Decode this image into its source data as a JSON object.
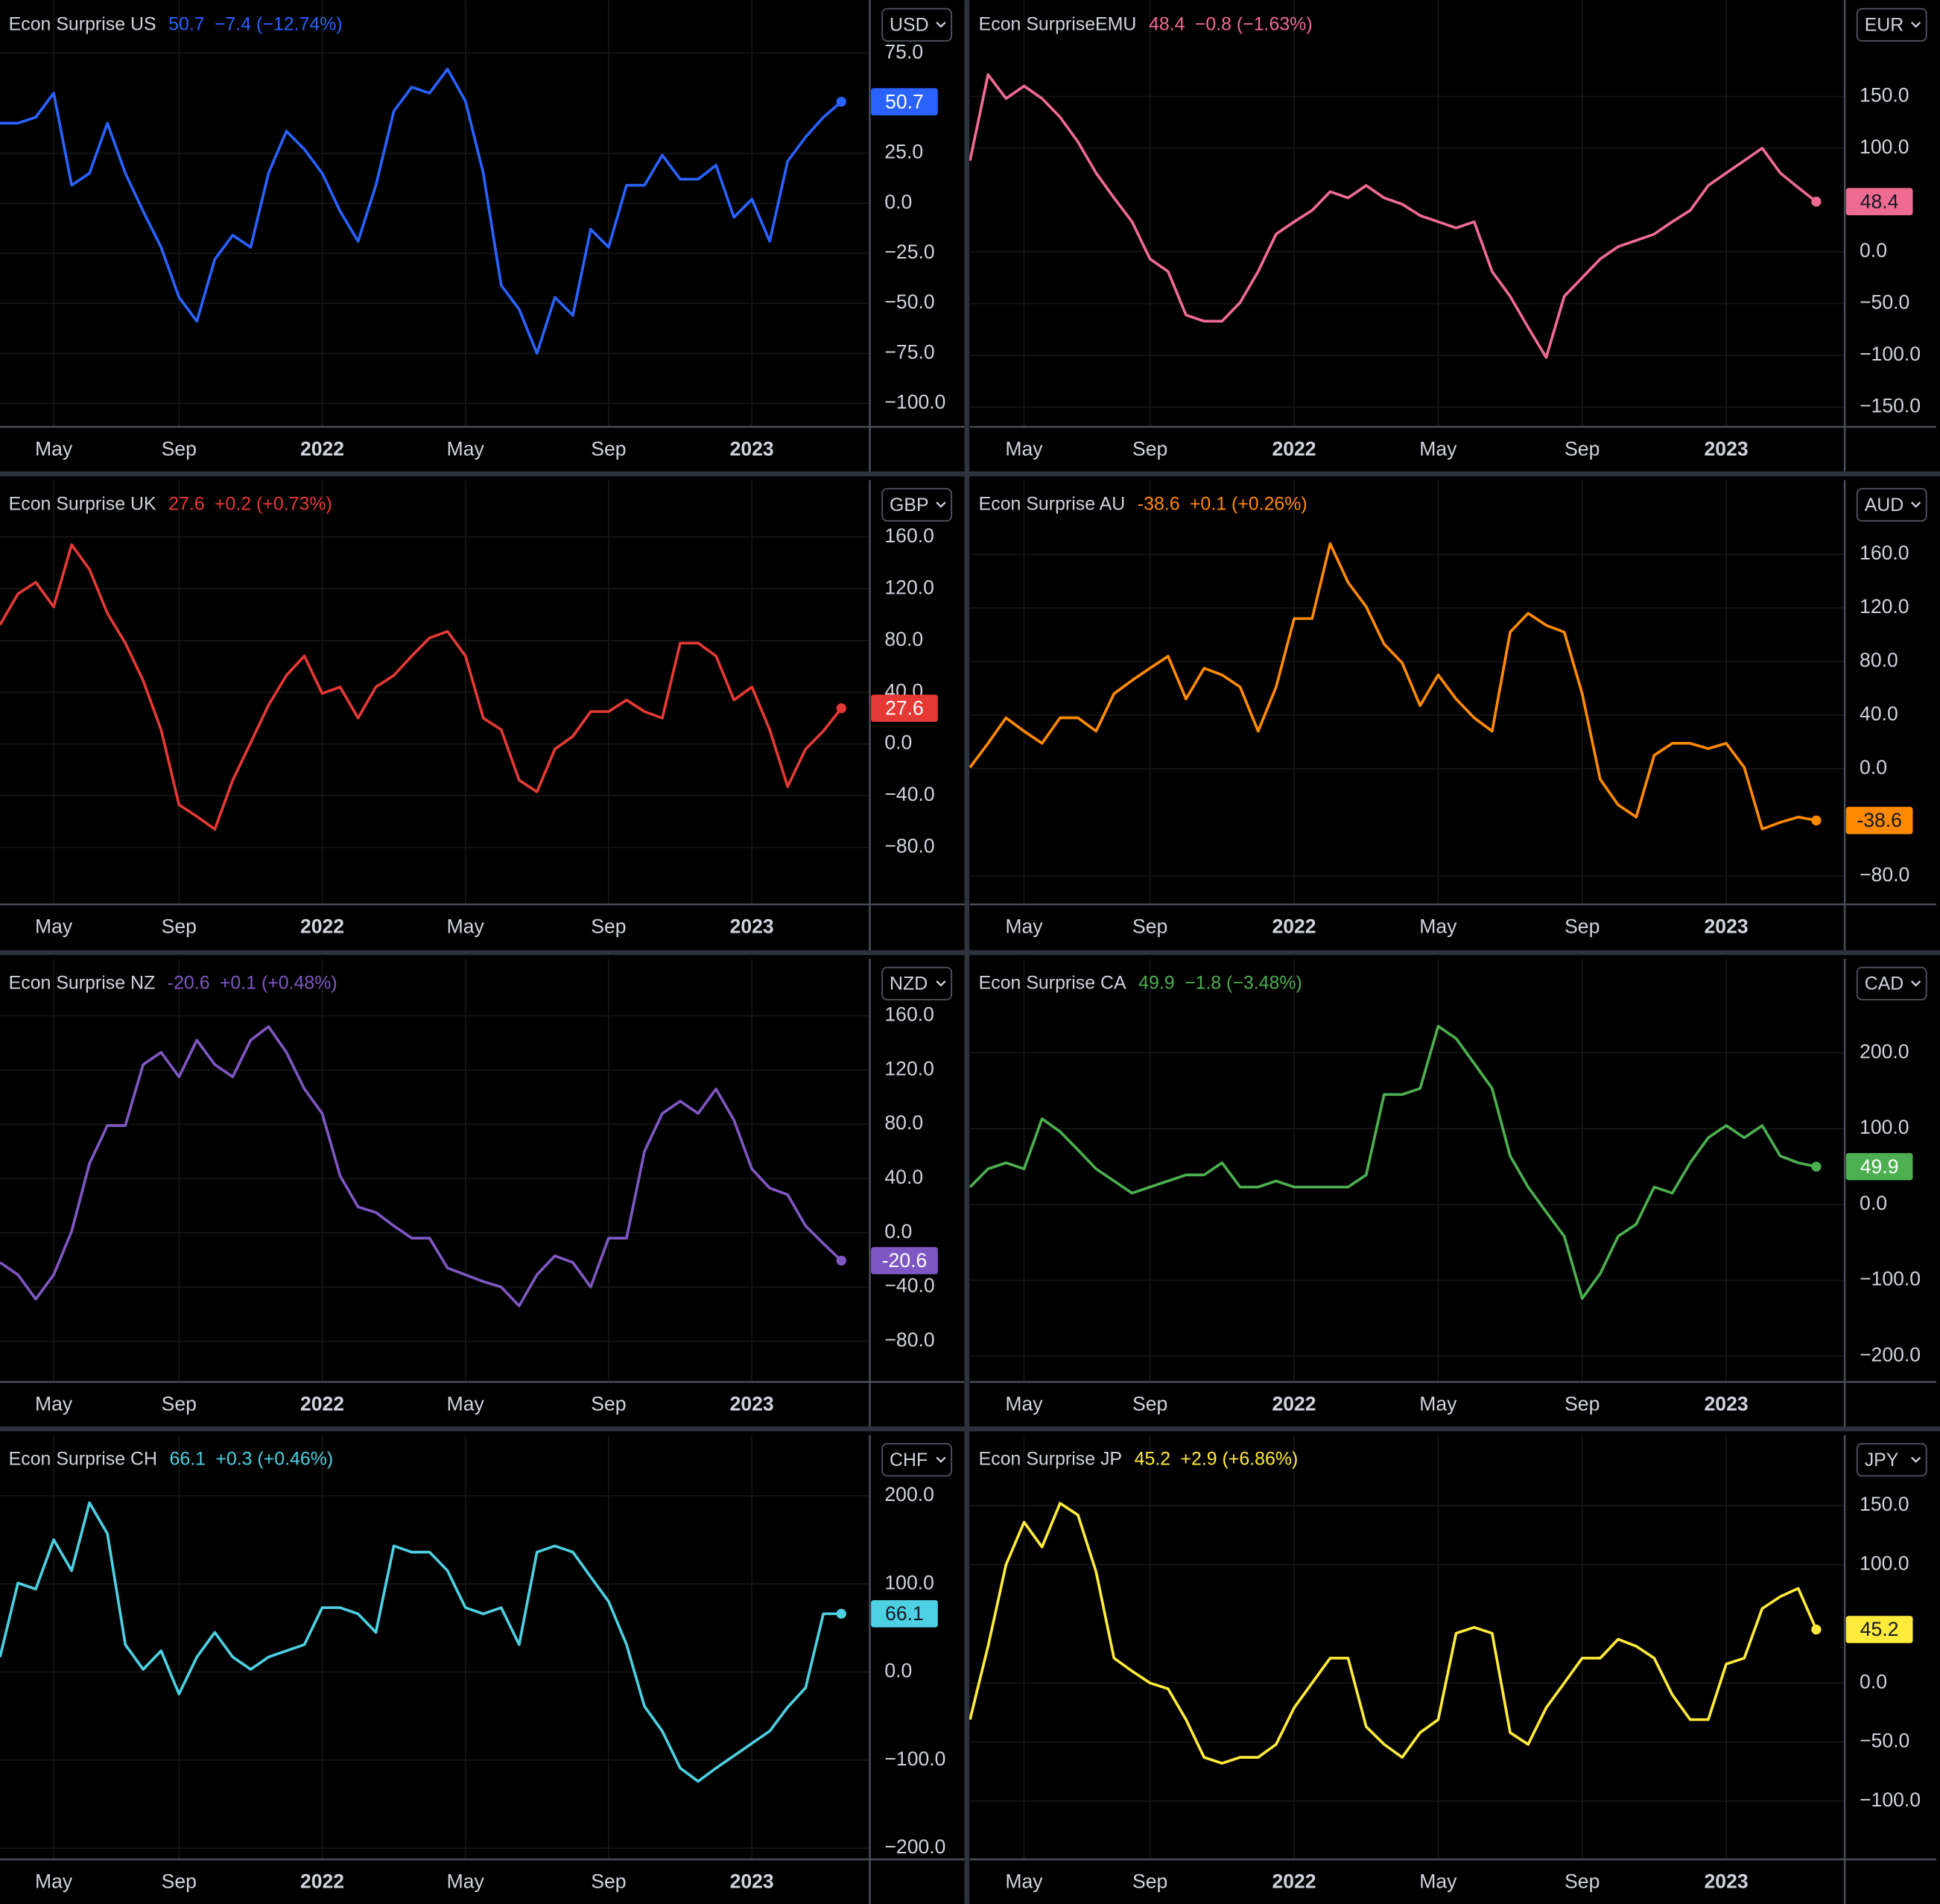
{
  "chart_data": [
    {
      "type": "line",
      "title": "Econ Surprise US",
      "change": "−7.4 (−12.74%)",
      "currency": "USD",
      "color": "#2962ff",
      "categories": [
        null,
        null,
        null,
        "May",
        null,
        null,
        null,
        null,
        null,
        null,
        "Sep",
        null,
        null,
        null,
        null,
        null,
        null,
        null,
        "2022",
        null,
        null,
        null,
        null,
        null,
        null,
        null,
        "May",
        null,
        null,
        null,
        null,
        null,
        null,
        null,
        "Sep",
        null,
        null,
        null,
        null,
        null,
        null,
        null,
        "2023",
        null,
        null,
        null,
        null,
        null
      ],
      "values": [
        40,
        40,
        43,
        55,
        9,
        15,
        40,
        15,
        -4,
        -22,
        -47,
        -59,
        -28,
        -16,
        -22,
        15,
        36,
        27,
        15,
        -4,
        -19,
        9,
        46,
        58,
        55,
        67,
        51,
        15,
        -41,
        -53,
        -75,
        -47,
        -56,
        -13,
        -22,
        9,
        9,
        24,
        12,
        12,
        19,
        -7,
        2,
        -19,
        21,
        33,
        43,
        50.7
      ],
      "ylim": [
        -111.7,
        101.5
      ],
      "yticks": [
        {
          "value": 75,
          "label": "75.0"
        },
        {
          "value": 25,
          "label": "25.0"
        },
        {
          "value": 0,
          "label": "0.0"
        },
        {
          "value": -25,
          "label": "−25.0"
        },
        {
          "value": -50,
          "label": "−50.0"
        },
        {
          "value": -75,
          "label": "−75.0"
        },
        {
          "value": -100,
          "label": "−100.0"
        }
      ]
    },
    {
      "type": "line",
      "title": "Econ SurpriseEMU",
      "change": "−0.8 (−1.63%)",
      "currency": "EUR",
      "color": "#f06b93",
      "categories": [
        null,
        null,
        null,
        "May",
        null,
        null,
        null,
        null,
        null,
        null,
        "Sep",
        null,
        null,
        null,
        null,
        null,
        null,
        null,
        "2022",
        null,
        null,
        null,
        null,
        null,
        null,
        null,
        "May",
        null,
        null,
        null,
        null,
        null,
        null,
        null,
        "Sep",
        null,
        null,
        null,
        null,
        null,
        null,
        null,
        "2023",
        null,
        null,
        null,
        null,
        null
      ],
      "values": [
        88,
        171,
        148,
        160,
        148,
        130,
        106,
        76,
        52,
        29,
        -7,
        -19,
        -61,
        -67,
        -67,
        -49,
        -19,
        17,
        29,
        40,
        58,
        52,
        64,
        52,
        46,
        35,
        29,
        23,
        29,
        -19,
        -43,
        -73,
        -102,
        -43,
        -25,
        -7,
        5,
        11,
        17,
        29,
        40,
        64,
        76,
        88,
        100,
        76,
        62,
        48.4
      ],
      "ylim": [
        -169,
        243
      ],
      "yticks": [
        {
          "value": 150,
          "label": "150.0"
        },
        {
          "value": 100,
          "label": "100.0"
        },
        {
          "value": 0,
          "label": "0.0"
        },
        {
          "value": -50,
          "label": "−50.0"
        },
        {
          "value": -100,
          "label": "−100.0"
        },
        {
          "value": -150,
          "label": "−150.0"
        }
      ]
    },
    {
      "type": "line",
      "title": "Econ Surprise UK",
      "change": "+0.2 (+0.73%)",
      "currency": "GBP",
      "color": "#e53935",
      "categories": [
        null,
        null,
        null,
        "May",
        null,
        null,
        null,
        null,
        null,
        null,
        "Sep",
        null,
        null,
        null,
        null,
        null,
        null,
        null,
        "2022",
        null,
        null,
        null,
        null,
        null,
        null,
        null,
        "May",
        null,
        null,
        null,
        null,
        null,
        null,
        null,
        "Sep",
        null,
        null,
        null,
        null,
        null,
        null,
        null,
        "2023",
        null,
        null,
        null,
        null,
        null
      ],
      "values": [
        92,
        116,
        125,
        106,
        154,
        135,
        101,
        78,
        49,
        11,
        -47,
        -56,
        -66,
        -28,
        1,
        30,
        53,
        68,
        39,
        44,
        20,
        44,
        53,
        68,
        82,
        87,
        68,
        20,
        11,
        -28,
        -37,
        -4,
        6,
        25,
        25,
        34,
        25,
        20,
        78,
        78,
        68,
        34,
        44,
        11,
        -33,
        -4,
        10,
        27.6
      ],
      "ylim": [
        -124,
        204
      ],
      "yticks": [
        {
          "value": 160,
          "label": "160.0"
        },
        {
          "value": 120,
          "label": "120.0"
        },
        {
          "value": 80,
          "label": "80.0"
        },
        {
          "value": 40,
          "label": "40.0"
        },
        {
          "value": 0,
          "label": "0.0"
        },
        {
          "value": -40,
          "label": "−40.0"
        },
        {
          "value": -80,
          "label": "−80.0"
        }
      ]
    },
    {
      "type": "line",
      "title": "Econ Surprise AU",
      "change": "+0.1 (+0.26%)",
      "currency": "AUD",
      "color": "#ff8a00",
      "categories": [
        null,
        null,
        null,
        "May",
        null,
        null,
        null,
        null,
        null,
        null,
        "Sep",
        null,
        null,
        null,
        null,
        null,
        null,
        null,
        "2022",
        null,
        null,
        null,
        null,
        null,
        null,
        null,
        "May",
        null,
        null,
        null,
        null,
        null,
        null,
        null,
        "Sep",
        null,
        null,
        null,
        null,
        null,
        null,
        null,
        "2023",
        null,
        null,
        null,
        null,
        null
      ],
      "values": [
        1,
        19,
        38,
        28,
        19,
        38,
        38,
        28,
        56,
        66,
        75,
        84,
        52,
        75,
        70,
        61,
        28,
        61,
        112,
        112,
        168,
        139,
        121,
        93,
        79,
        47,
        70,
        52,
        38,
        28,
        102,
        116,
        107,
        102,
        56,
        -8,
        -27,
        -36,
        10,
        19,
        19,
        15,
        19,
        1,
        -45,
        -40,
        -36,
        -38.6
      ],
      "ylim": [
        -101.2,
        215.4
      ],
      "yticks": [
        {
          "value": 160,
          "label": "160.0"
        },
        {
          "value": 120,
          "label": "120.0"
        },
        {
          "value": 80,
          "label": "80.0"
        },
        {
          "value": 40,
          "label": "40.0"
        },
        {
          "value": 0,
          "label": "0.0"
        },
        {
          "value": -80,
          "label": "−80.0"
        }
      ]
    },
    {
      "type": "line",
      "title": "Econ Surprise NZ",
      "change": "+0.1 (+0.48%)",
      "currency": "NZD",
      "color": "#7e57c2",
      "categories": [
        null,
        null,
        null,
        "May",
        null,
        null,
        null,
        null,
        null,
        null,
        "Sep",
        null,
        null,
        null,
        null,
        null,
        null,
        null,
        "2022",
        null,
        null,
        null,
        null,
        null,
        null,
        null,
        "May",
        null,
        null,
        null,
        null,
        null,
        null,
        null,
        "Sep",
        null,
        null,
        null,
        null,
        null,
        null,
        null,
        "2023",
        null,
        null,
        null,
        null,
        null
      ],
      "values": [
        -22,
        -31,
        -49,
        -31,
        1,
        51,
        79,
        79,
        124,
        133,
        115,
        142,
        124,
        115,
        142,
        152,
        133,
        106,
        88,
        42,
        19,
        15,
        5,
        -4,
        -4,
        -26,
        -31,
        -36,
        -40,
        -54,
        -31,
        -17,
        -22,
        -40,
        -4,
        -4,
        60,
        88,
        97,
        88,
        106,
        83,
        47,
        33,
        28,
        5,
        -8,
        -20.6
      ],
      "ylim": [
        -110,
        202
      ],
      "yticks": [
        {
          "value": 160,
          "label": "160.0"
        },
        {
          "value": 120,
          "label": "120.0"
        },
        {
          "value": 80,
          "label": "80.0"
        },
        {
          "value": 40,
          "label": "40.0"
        },
        {
          "value": 0,
          "label": "0.0"
        },
        {
          "value": -40,
          "label": "−40.0"
        },
        {
          "value": -80,
          "label": "−80.0"
        }
      ]
    },
    {
      "type": "line",
      "title": "Econ Surprise CA",
      "change": "−1.8 (−3.48%)",
      "currency": "CAD",
      "color": "#4caf50",
      "categories": [
        null,
        null,
        null,
        "May",
        null,
        null,
        null,
        null,
        null,
        null,
        "Sep",
        null,
        null,
        null,
        null,
        null,
        null,
        null,
        "2022",
        null,
        null,
        null,
        null,
        null,
        null,
        null,
        "May",
        null,
        null,
        null,
        null,
        null,
        null,
        null,
        "Sep",
        null,
        null,
        null,
        null,
        null,
        null,
        null,
        "2023",
        null,
        null,
        null,
        null,
        null
      ],
      "values": [
        23,
        47,
        55,
        47,
        113,
        96,
        72,
        47,
        31,
        15,
        23,
        31,
        39,
        39,
        55,
        23,
        23,
        31,
        23,
        23,
        23,
        23,
        39,
        145,
        145,
        153,
        235,
        219,
        186,
        153,
        64,
        23,
        -10,
        -42,
        -124,
        -91,
        -42,
        -26,
        23,
        15,
        55,
        88,
        104,
        88,
        104,
        64,
        55,
        49.9
      ],
      "ylim": [
        -234,
        324
      ],
      "yticks": [
        {
          "value": 200,
          "label": "200.0"
        },
        {
          "value": 100,
          "label": "100.0"
        },
        {
          "value": 0,
          "label": "0.0"
        },
        {
          "value": -100,
          "label": "−100.0"
        },
        {
          "value": -200,
          "label": "−200.0"
        }
      ]
    },
    {
      "type": "line",
      "title": "Econ Surprise CH",
      "change": "+0.3 (+0.46%)",
      "currency": "CHF",
      "color": "#4dd0e1",
      "categories": [
        null,
        null,
        null,
        "May",
        null,
        null,
        null,
        null,
        null,
        null,
        "Sep",
        null,
        null,
        null,
        null,
        null,
        null,
        null,
        "2022",
        null,
        null,
        null,
        null,
        null,
        null,
        null,
        "May",
        null,
        null,
        null,
        null,
        null,
        null,
        null,
        "Sep",
        null,
        null,
        null,
        null,
        null,
        null,
        null,
        "2023",
        null,
        null,
        null,
        null,
        null
      ],
      "values": [
        17,
        101,
        94,
        150,
        115,
        192,
        157,
        31,
        3,
        24,
        -25,
        17,
        45,
        17,
        3,
        17,
        24,
        31,
        73,
        73,
        66,
        45,
        143,
        136,
        136,
        115,
        73,
        66,
        73,
        31,
        136,
        143,
        136,
        108,
        80,
        31,
        -39,
        -67,
        -109,
        -124,
        -109,
        -95,
        -81,
        -67,
        -40,
        -18,
        66,
        66.1
      ],
      "ylim": [
        -212.6,
        268.8
      ],
      "yticks": [
        {
          "value": 200,
          "label": "200.0"
        },
        {
          "value": 100,
          "label": "100.0"
        },
        {
          "value": 0,
          "label": "0.0"
        },
        {
          "value": -100,
          "label": "−100.0"
        },
        {
          "value": -200,
          "label": "−200.0"
        }
      ]
    },
    {
      "type": "line",
      "title": "Econ Surprise JP",
      "change": "+2.9 (+6.86%)",
      "currency": "JPY",
      "color": "#ffeb3b",
      "categories": [
        null,
        null,
        null,
        "May",
        null,
        null,
        null,
        null,
        null,
        null,
        "Sep",
        null,
        null,
        null,
        null,
        null,
        null,
        null,
        "2022",
        null,
        null,
        null,
        null,
        null,
        null,
        null,
        "May",
        null,
        null,
        null,
        null,
        null,
        null,
        null,
        "Sep",
        null,
        null,
        null,
        null,
        null,
        null,
        null,
        "2023",
        null,
        null,
        null,
        null,
        null
      ],
      "values": [
        -31,
        31,
        100,
        136,
        115,
        152,
        142,
        94,
        21,
        10,
        0,
        -5,
        -31,
        -63,
        -68,
        -63,
        -63,
        -52,
        -21,
        0,
        21,
        21,
        -37,
        -52,
        -63,
        -42,
        -31,
        42,
        47,
        42,
        -42,
        -52,
        -21,
        0,
        21,
        21,
        37,
        31,
        21,
        -10,
        -31,
        -31,
        16,
        21,
        63,
        73,
        80,
        45.2
      ],
      "ylim": [
        -149.3,
        209.7
      ],
      "yticks": [
        {
          "value": 150,
          "label": "150.0"
        },
        {
          "value": 100,
          "label": "100.0"
        },
        {
          "value": 0,
          "label": "0.0"
        },
        {
          "value": -50,
          "label": "−50.0"
        },
        {
          "value": -100,
          "label": "−100.0"
        }
      ]
    }
  ]
}
